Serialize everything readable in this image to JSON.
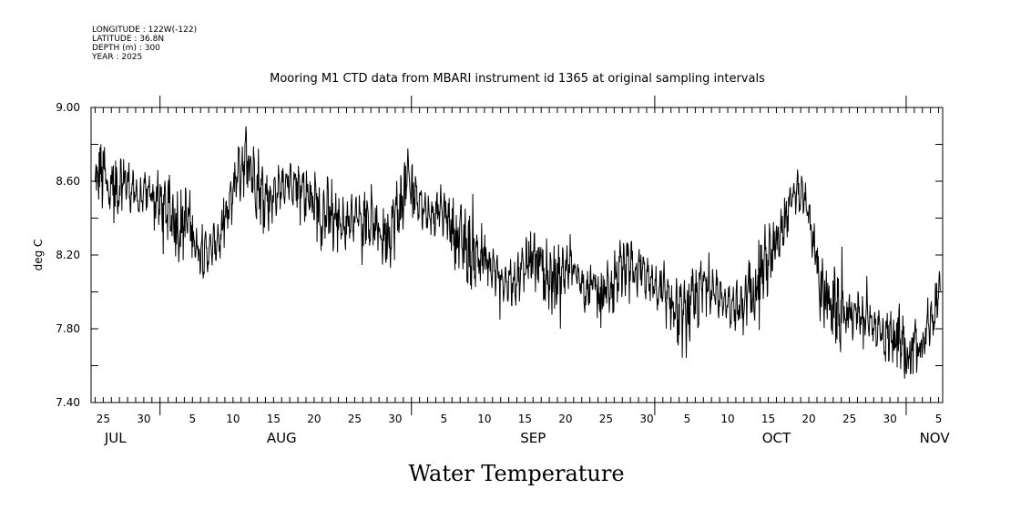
{
  "meta_lines": [
    "LONGITUDE : 122W(-122)",
    "LATITUDE : 36.8N",
    "DEPTH (m) : 300",
    "YEAR : 2025"
  ],
  "chart_data": {
    "type": "line",
    "title": "Mooring M1 CTD data from MBARI instrument id 1365 at original sampling intervals",
    "xlabel": "Water Temperature",
    "ylabel": "deg C",
    "ylim": [
      7.4,
      9.0
    ],
    "yticks": [
      7.4,
      7.8,
      8.2,
      8.6,
      9.0
    ],
    "ytick_labels": [
      "7.40",
      "7.80",
      "8.20",
      "8.60",
      "9.00"
    ],
    "xlim_day": [
      -8.5,
      96.5
    ],
    "x_unit": "days since Aug 1 2025",
    "xticks": [
      {
        "day": -7,
        "label": "25"
      },
      {
        "day": -2,
        "label": "30"
      },
      {
        "day": 4,
        "label": "5"
      },
      {
        "day": 9,
        "label": "10"
      },
      {
        "day": 14,
        "label": "15"
      },
      {
        "day": 19,
        "label": "20"
      },
      {
        "day": 24,
        "label": "25"
      },
      {
        "day": 29,
        "label": "30"
      },
      {
        "day": 35,
        "label": "5"
      },
      {
        "day": 40,
        "label": "10"
      },
      {
        "day": 45,
        "label": "15"
      },
      {
        "day": 50,
        "label": "20"
      },
      {
        "day": 55,
        "label": "25"
      },
      {
        "day": 60,
        "label": "30"
      },
      {
        "day": 65,
        "label": "5"
      },
      {
        "day": 70,
        "label": "10"
      },
      {
        "day": 75,
        "label": "15"
      },
      {
        "day": 80,
        "label": "20"
      },
      {
        "day": 85,
        "label": "25"
      },
      {
        "day": 90,
        "label": "30"
      },
      {
        "day": 96,
        "label": "5"
      }
    ],
    "months": [
      {
        "label": "JUL",
        "day": -5.5
      },
      {
        "label": "AUG",
        "day": 15
      },
      {
        "label": "SEP",
        "day": 46
      },
      {
        "label": "OCT",
        "day": 76
      },
      {
        "label": "NOV",
        "day": 95.5
      }
    ],
    "month_boundaries": [
      0,
      31,
      61,
      92
    ],
    "series": [
      {
        "name": "Water Temperature",
        "anchor_days": [
          -8.5,
          -7.5,
          -6.5,
          -5.5,
          -4.5,
          -3.5,
          -2.5,
          -1.5,
          -0.5,
          0.5,
          1.5,
          2.5,
          3.5,
          4.5,
          5.5,
          6.5,
          7.5,
          8.5,
          9.5,
          10.5,
          11.5,
          12.5,
          13.5,
          14.5,
          15.5,
          16.5,
          17.5,
          18.5,
          19.5,
          20.5,
          21.5,
          22.5,
          23.5,
          24.5,
          25.5,
          26.5,
          27.5,
          28.5,
          29.5,
          30.5,
          31.5,
          32.5,
          33.5,
          34.5,
          35.5,
          36.5,
          37.5,
          38.5,
          39.5,
          40.5,
          41.5,
          42.5,
          43.5,
          44.5,
          45.5,
          46.5,
          47.5,
          48.5,
          49.5,
          50.5,
          51.5,
          52.5,
          53.5,
          54.5,
          55.5,
          56.5,
          57.5,
          58.5,
          59.5,
          60.5,
          61.5,
          62.5,
          63.5,
          64.5,
          65.5,
          66.5,
          67.5,
          68.5,
          69.5,
          70.5,
          71.5,
          72.5,
          73.5,
          74.5,
          75.5,
          76.5,
          77.5,
          78.5,
          79.5,
          80.5,
          81.5,
          82.5,
          83.5,
          84.5,
          85.5,
          86.5,
          87.5,
          88.5,
          89.5,
          90.5,
          91.5,
          92.5,
          93.5,
          94.5,
          95.5,
          96.5
        ],
        "anchor_values": [
          8.45,
          8.65,
          8.6,
          8.55,
          8.62,
          8.55,
          8.5,
          8.55,
          8.5,
          8.45,
          8.42,
          8.35,
          8.4,
          8.25,
          8.2,
          8.25,
          8.3,
          8.45,
          8.65,
          8.72,
          8.65,
          8.55,
          8.5,
          8.55,
          8.6,
          8.58,
          8.55,
          8.5,
          8.45,
          8.42,
          8.4,
          8.38,
          8.4,
          8.42,
          8.38,
          8.35,
          8.3,
          8.35,
          8.45,
          8.6,
          8.55,
          8.45,
          8.4,
          8.45,
          8.4,
          8.3,
          8.25,
          8.2,
          8.2,
          8.15,
          8.1,
          8.05,
          8.05,
          8.1,
          8.2,
          8.15,
          8.1,
          8.05,
          8.1,
          8.15,
          8.1,
          8.0,
          8.05,
          7.95,
          8.05,
          8.1,
          8.1,
          8.12,
          8.1,
          8.05,
          8.0,
          7.95,
          7.9,
          7.85,
          7.9,
          8.0,
          8.05,
          8.0,
          7.95,
          7.95,
          7.9,
          8.0,
          8.05,
          8.15,
          8.2,
          8.3,
          8.45,
          8.55,
          8.5,
          8.3,
          8.0,
          7.95,
          7.9,
          7.85,
          7.9,
          7.88,
          7.85,
          7.8,
          7.75,
          7.78,
          7.7,
          7.65,
          7.72,
          7.8,
          7.9,
          8.05
        ]
      }
    ]
  }
}
